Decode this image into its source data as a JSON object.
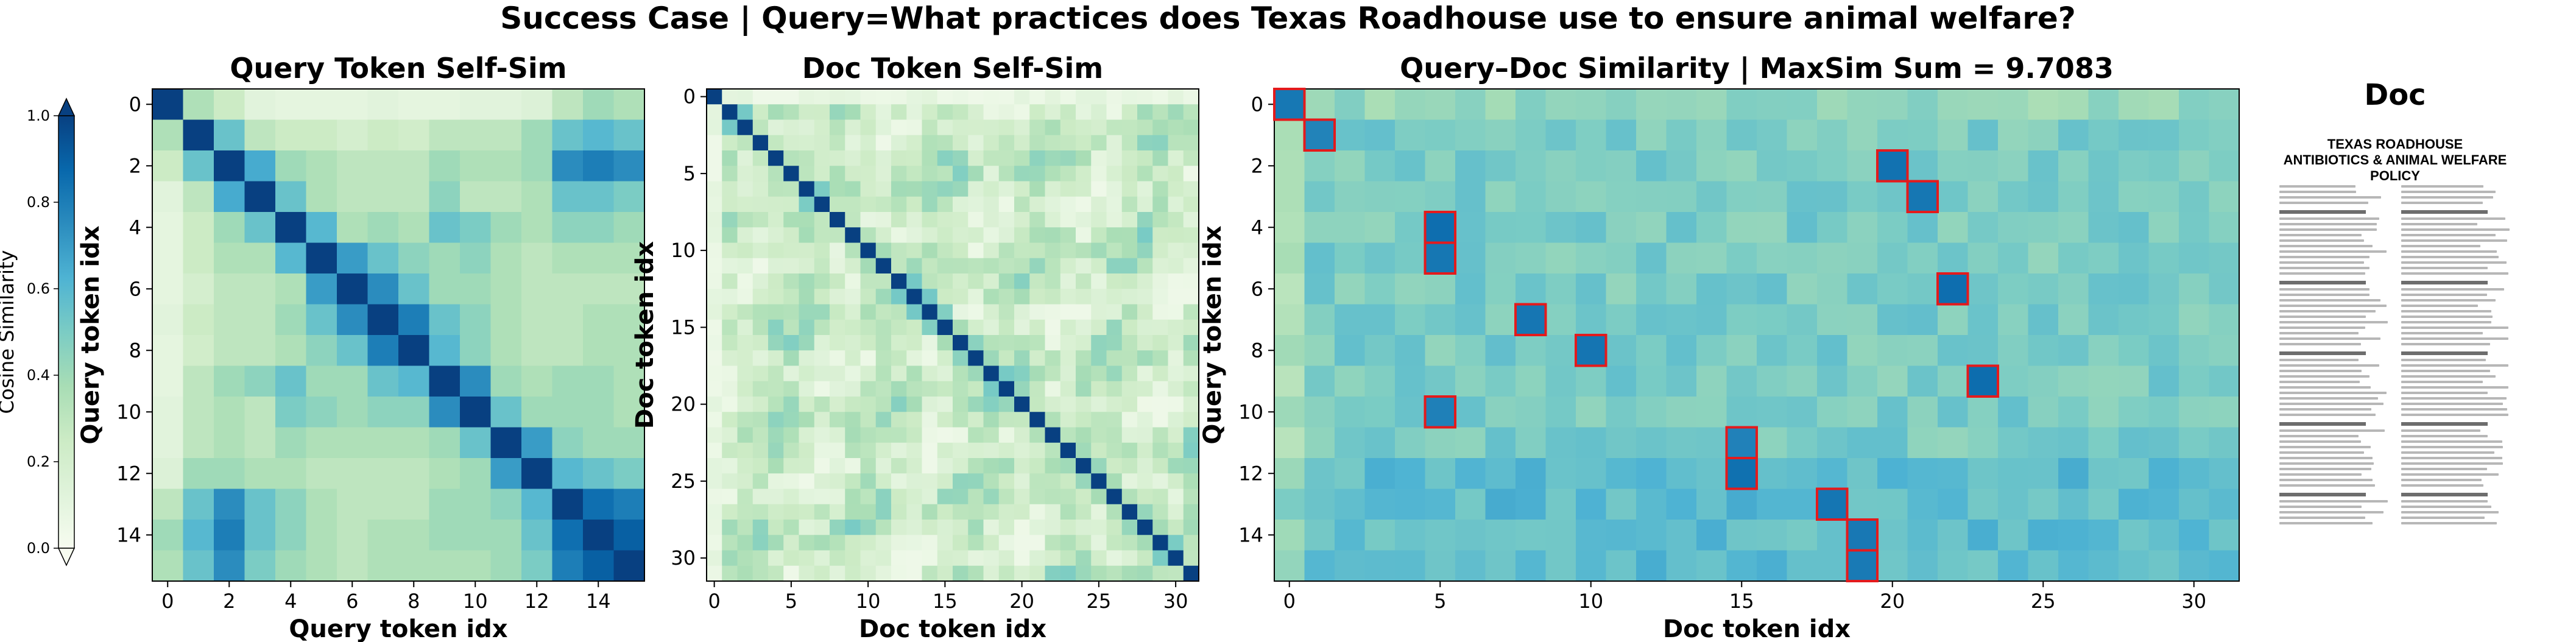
{
  "suptitle": "Success Case | Query=What practices does Texas Roadhouse use to ensure animal welfare?",
  "colorbar": {
    "label": "Cosine Similarity",
    "ticks": [
      "0.0",
      "0.2",
      "0.4",
      "0.6",
      "0.8",
      "1.0"
    ]
  },
  "doc_panel": {
    "title": "Doc",
    "heading_line1": "TEXAS ROADHOUSE",
    "heading_line2": "ANTIBIOTICS & ANIMAL WELFARE POLICY"
  },
  "colors": {
    "colormap": [
      "#f7fcf0",
      "#e0f3db",
      "#ccebc5",
      "#a8ddb5",
      "#7bccc4",
      "#4eb3d3",
      "#2b8cbe",
      "#0868ac",
      "#084081"
    ],
    "highlight": "#e41a1c"
  },
  "chart_data": [
    {
      "type": "heatmap",
      "title": "Query Token Self-Sim",
      "xlabel": "Query token idx",
      "ylabel": "Query token idx",
      "rows": 16,
      "cols": 16,
      "xticks": [
        0,
        2,
        4,
        6,
        8,
        10,
        12,
        14
      ],
      "yticks": [
        0,
        2,
        4,
        6,
        8,
        10,
        12,
        14
      ],
      "vmin": 0,
      "vmax": 1,
      "values": [
        [
          1.0,
          0.35,
          0.25,
          0.12,
          0.1,
          0.1,
          0.1,
          0.12,
          0.1,
          0.1,
          0.12,
          0.12,
          0.15,
          0.3,
          0.4,
          0.35
        ],
        [
          0.35,
          1.0,
          0.55,
          0.3,
          0.25,
          0.25,
          0.2,
          0.25,
          0.22,
          0.3,
          0.3,
          0.3,
          0.4,
          0.55,
          0.6,
          0.55
        ],
        [
          0.25,
          0.55,
          1.0,
          0.65,
          0.4,
          0.35,
          0.3,
          0.3,
          0.3,
          0.4,
          0.35,
          0.35,
          0.4,
          0.75,
          0.8,
          0.75
        ],
        [
          0.12,
          0.3,
          0.65,
          1.0,
          0.55,
          0.35,
          0.3,
          0.3,
          0.3,
          0.45,
          0.3,
          0.3,
          0.35,
          0.55,
          0.55,
          0.5
        ],
        [
          0.1,
          0.25,
          0.4,
          0.55,
          1.0,
          0.6,
          0.35,
          0.4,
          0.35,
          0.55,
          0.5,
          0.4,
          0.35,
          0.45,
          0.45,
          0.4
        ],
        [
          0.1,
          0.25,
          0.35,
          0.35,
          0.6,
          1.0,
          0.7,
          0.55,
          0.45,
          0.4,
          0.45,
          0.35,
          0.3,
          0.35,
          0.35,
          0.35
        ],
        [
          0.1,
          0.2,
          0.3,
          0.3,
          0.35,
          0.7,
          1.0,
          0.75,
          0.55,
          0.4,
          0.4,
          0.35,
          0.3,
          0.3,
          0.3,
          0.3
        ],
        [
          0.12,
          0.25,
          0.3,
          0.3,
          0.4,
          0.55,
          0.75,
          1.0,
          0.8,
          0.55,
          0.45,
          0.35,
          0.3,
          0.3,
          0.35,
          0.35
        ],
        [
          0.1,
          0.22,
          0.3,
          0.3,
          0.35,
          0.45,
          0.55,
          0.8,
          1.0,
          0.6,
          0.45,
          0.35,
          0.3,
          0.3,
          0.35,
          0.35
        ],
        [
          0.1,
          0.3,
          0.4,
          0.45,
          0.55,
          0.4,
          0.4,
          0.55,
          0.6,
          1.0,
          0.75,
          0.4,
          0.35,
          0.4,
          0.4,
          0.35
        ],
        [
          0.12,
          0.3,
          0.35,
          0.3,
          0.5,
          0.45,
          0.4,
          0.45,
          0.45,
          0.75,
          1.0,
          0.55,
          0.4,
          0.4,
          0.4,
          0.35
        ],
        [
          0.12,
          0.3,
          0.35,
          0.3,
          0.4,
          0.35,
          0.35,
          0.35,
          0.35,
          0.4,
          0.55,
          1.0,
          0.7,
          0.45,
          0.4,
          0.4
        ],
        [
          0.15,
          0.4,
          0.4,
          0.35,
          0.35,
          0.3,
          0.3,
          0.3,
          0.3,
          0.35,
          0.4,
          0.7,
          1.0,
          0.6,
          0.55,
          0.5
        ],
        [
          0.3,
          0.55,
          0.75,
          0.55,
          0.45,
          0.35,
          0.3,
          0.3,
          0.3,
          0.4,
          0.4,
          0.45,
          0.6,
          1.0,
          0.85,
          0.8
        ],
        [
          0.4,
          0.6,
          0.8,
          0.55,
          0.45,
          0.35,
          0.3,
          0.35,
          0.35,
          0.4,
          0.4,
          0.4,
          0.55,
          0.85,
          1.0,
          0.9
        ],
        [
          0.35,
          0.55,
          0.75,
          0.5,
          0.4,
          0.35,
          0.3,
          0.35,
          0.35,
          0.35,
          0.35,
          0.4,
          0.5,
          0.8,
          0.9,
          1.0
        ]
      ]
    },
    {
      "type": "heatmap",
      "title": "Doc Token Self-Sim",
      "xlabel": "Doc token idx",
      "ylabel": "Doc token idx",
      "rows": 32,
      "cols": 32,
      "xticks": [
        0,
        5,
        10,
        15,
        20,
        25,
        30
      ],
      "yticks": [
        0,
        5,
        10,
        15,
        20,
        25,
        30
      ],
      "vmin": 0,
      "vmax": 1,
      "generated": "symmetric self-similarity: diagonal 1.0, near-diagonal blocks, off-diagonal bands"
    },
    {
      "type": "heatmap",
      "title": "Query–Doc Similarity | MaxSim Sum = 9.7083",
      "xlabel": "Doc token idx",
      "ylabel": "Query token idx",
      "rows": 16,
      "cols": 32,
      "xticks": [
        0,
        5,
        10,
        15,
        20,
        25,
        30
      ],
      "yticks": [
        0,
        2,
        4,
        6,
        8,
        10,
        12,
        14
      ],
      "vmin": 0,
      "vmax": 1,
      "maxsim_argmax": [
        0,
        1,
        20,
        21,
        5,
        5,
        22,
        8,
        10,
        23,
        5,
        15,
        15,
        18,
        19,
        19
      ]
    }
  ]
}
